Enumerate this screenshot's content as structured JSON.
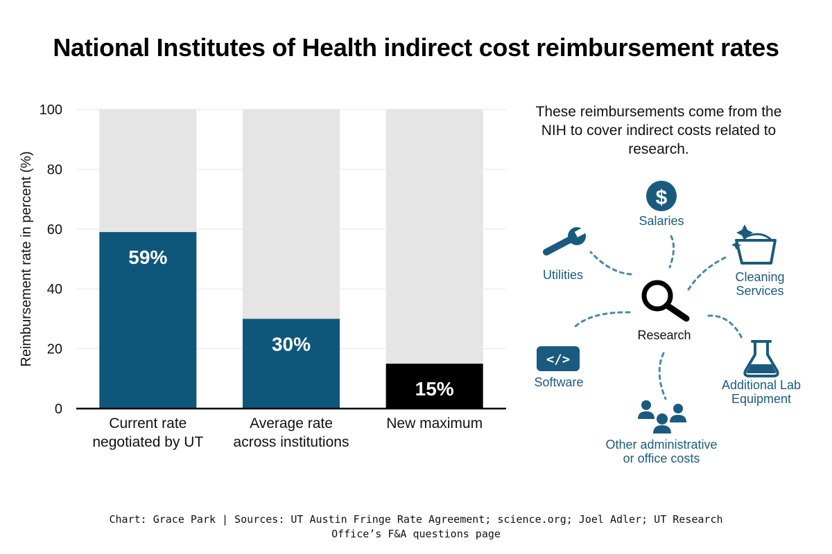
{
  "title": "National Institutes of Health indirect cost reimbursement rates",
  "colors": {
    "current": "#0f577a",
    "average": "#0f577a",
    "new": "#000000",
    "background_bar": "#e5e5e5",
    "icon": "#1a5a7e",
    "text": "#111111"
  },
  "chart_data": {
    "type": "bar",
    "categories": [
      [
        "Current rate",
        "negotiated by UT"
      ],
      [
        "Average rate",
        "across institutions"
      ],
      [
        "New maximum"
      ]
    ],
    "values": [
      59,
      30,
      15
    ],
    "value_labels": [
      "59%",
      "30%",
      "15%"
    ],
    "ylabel": "Reimbursement rate in percent (%)",
    "ylim": [
      0,
      100
    ],
    "yticks": [
      0,
      20,
      40,
      60,
      80,
      100
    ],
    "background_value": 100,
    "grid": true
  },
  "info": {
    "description": "These reimbursements come from the NIH to cover indirect costs related to research.",
    "center_label": "Research",
    "center_icon": "magnifying-glass-icon",
    "items": [
      {
        "key": "salaries",
        "label": [
          "Salaries"
        ],
        "icon": "dollar-icon"
      },
      {
        "key": "cleaning",
        "label": [
          "Cleaning",
          "Services"
        ],
        "icon": "bucket-icon"
      },
      {
        "key": "lab",
        "label": [
          "Additional Lab",
          "Equipment"
        ],
        "icon": "flask-icon"
      },
      {
        "key": "admin",
        "label": [
          "Other administrative",
          "or office costs"
        ],
        "icon": "people-icon"
      },
      {
        "key": "software",
        "label": [
          "Software"
        ],
        "icon": "code-icon"
      },
      {
        "key": "utilities",
        "label": [
          "Utilities"
        ],
        "icon": "wrench-icon"
      }
    ]
  },
  "footer": {
    "line1": "Chart: Grace Park | Sources: UT Austin Fringe Rate Agreement; science.org; Joel Adler; UT Research",
    "line2": "Office’s F&A questions page"
  }
}
